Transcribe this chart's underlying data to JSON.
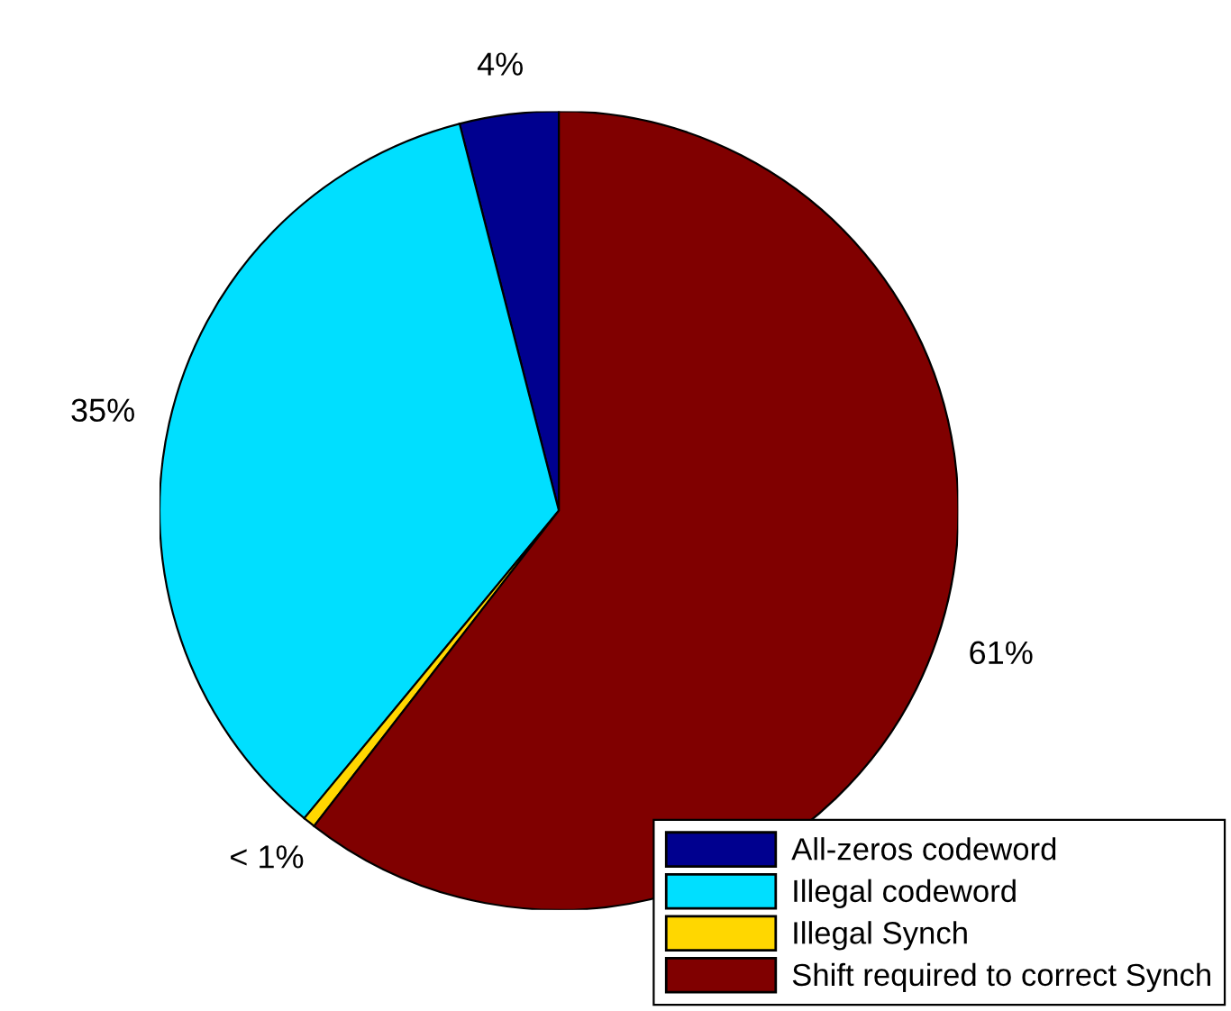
{
  "chart_data": {
    "type": "pie",
    "categories": [
      "All-zeros codeword",
      "Illegal codeword",
      "Illegal Synch",
      "Shift required to correct Synch"
    ],
    "values": [
      4,
      35,
      0.5,
      60.5
    ],
    "value_labels": [
      "4%",
      "35%",
      "< 1%",
      "61%"
    ],
    "colors": [
      "#00008f",
      "#00dfff",
      "#ffd700",
      "#800000"
    ],
    "legend": "bottom right"
  }
}
